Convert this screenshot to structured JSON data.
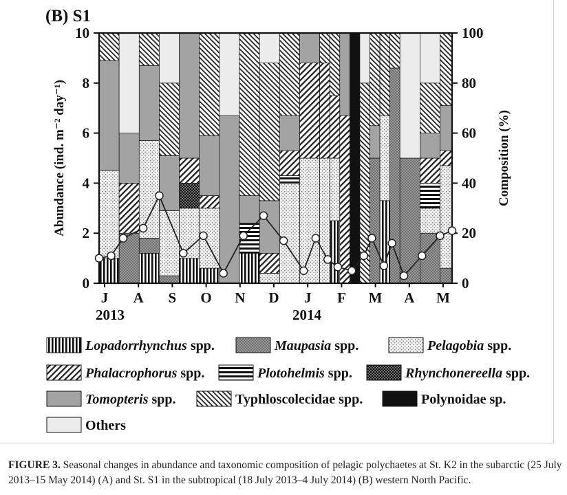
{
  "panel_label": "(B) S1",
  "caption": {
    "label": "FIGURE 3.",
    "text": "Seasonal changes in abundance and taxonomic composition of pelagic polychaetes at St. K2 in the subarctic (25 July 2013–15 May 2014) (A) and St. S1 in the subtropical (18 July 2013–4 July 2014) (B) western North Pacific."
  },
  "chart_data": {
    "type": "bar",
    "title": "(B) S1",
    "ylabel_left": "Abundance (ind. m⁻² day⁻¹)",
    "ylabel_right": "Composition (%)",
    "ylim_left": [
      0,
      10
    ],
    "ylim_right": [
      0,
      100
    ],
    "left_ticks": [
      "0",
      "2",
      "4",
      "6",
      "8",
      "10"
    ],
    "right_ticks": [
      "0",
      "20",
      "40",
      "60",
      "80",
      "100"
    ],
    "month_labels": [
      "J",
      "A",
      "S",
      "O",
      "N",
      "D",
      "J",
      "F",
      "M",
      "A",
      "M"
    ],
    "year_labels": [
      "2013",
      "2014"
    ],
    "grid": false,
    "legend_position": "bottom",
    "legend": [
      {
        "key": "lopa",
        "label": "Lopadorrhynchus",
        "suffix": " spp.",
        "italic": true
      },
      {
        "key": "maup",
        "label": "Maupasia",
        "suffix": " spp.",
        "italic": true
      },
      {
        "key": "pela",
        "label": "Pelagobia",
        "suffix": " spp.",
        "italic": true
      },
      {
        "key": "phal",
        "label": "Phalacrophorus",
        "suffix": " spp.",
        "italic": true
      },
      {
        "key": "plot",
        "label": "Plotohelmis",
        "suffix": " spp.",
        "italic": true
      },
      {
        "key": "rhyn",
        "label": "Rhynchonereella",
        "suffix": " spp.",
        "italic": true
      },
      {
        "key": "tomo",
        "label": "Tomopteris",
        "suffix": " spp.",
        "italic": true
      },
      {
        "key": "typh",
        "label": "Typhloscolecidae spp.",
        "suffix": "",
        "italic": false
      },
      {
        "key": "poly",
        "label": "Polynoidae sp.",
        "suffix": "",
        "italic": false
      },
      {
        "key": "oth",
        "label": "Others",
        "suffix": "",
        "italic": false
      }
    ],
    "stack_order": [
      "lopa",
      "maup",
      "pela",
      "plot",
      "rhyn",
      "phal",
      "tomo",
      "poly",
      "typh",
      "oth"
    ],
    "composition_bars": [
      {
        "t": 0.0,
        "t_end": 1.0,
        "comp": {
          "lopa": 10,
          "pela": 35,
          "tomo": 44,
          "typh": 11
        }
      },
      {
        "t": 1.0,
        "t_end": 2.0,
        "comp": {
          "maup": 20,
          "tomo": 20,
          "phal": 20,
          "oth": 40
        }
      },
      {
        "t": 2.0,
        "t_end": 3.0,
        "comp": {
          "lopa": 12,
          "maup": 6,
          "pela": 39,
          "tomo": 30,
          "typh": 13
        }
      },
      {
        "t": 3.0,
        "t_end": 4.0,
        "comp": {
          "maup": 3,
          "pela": 26,
          "tomo": 22,
          "typh": 29,
          "oth": 20
        }
      },
      {
        "t": 4.0,
        "t_end": 5.0,
        "comp": {
          "lopa": 10,
          "pela": 20,
          "phal": 10,
          "rhyn": 10,
          "tomo": 50
        }
      },
      {
        "t": 5.0,
        "t_end": 6.0,
        "comp": {
          "lopa": 6,
          "pela": 24,
          "phal": 5,
          "tomo": 24,
          "typh": 41
        }
      },
      {
        "t": 6.0,
        "t_end": 7.0,
        "comp": {
          "tomo": 67,
          "oth": 33
        }
      },
      {
        "t": 7.0,
        "t_end": 8.0,
        "comp": {
          "lopa": 12,
          "plot": 12,
          "tomo": 11,
          "typh": 65
        }
      },
      {
        "t": 8.0,
        "t_end": 9.0,
        "comp": {
          "pela": 4,
          "phal": 8,
          "tomo": 21,
          "typh": 55,
          "oth": 12
        }
      },
      {
        "t": 9.0,
        "t_end": 10.0,
        "comp": {
          "pela": 40,
          "phal": 10,
          "plot": 3,
          "tomo": 14,
          "typh": 33
        }
      },
      {
        "t": 10.0,
        "t_end": 11.0,
        "comp": {
          "pela": 50,
          "phal": 38,
          "tomo": 12
        }
      },
      {
        "t": 11.0,
        "t_end": 11.5,
        "comp": {
          "pela": 50,
          "phal": 38,
          "typh": 12
        }
      },
      {
        "t": 11.5,
        "t_end": 12.0,
        "comp": {
          "lopa": 25,
          "pela": 25,
          "phal": 25,
          "typh": 25
        }
      },
      {
        "t": 12.0,
        "t_end": 12.5,
        "comp": {
          "phal": 67,
          "tomo": 33
        }
      },
      {
        "t": 12.5,
        "t_end": 13.0,
        "comp": {
          "poly": 100
        }
      },
      {
        "t": 13.0,
        "t_end": 13.5,
        "comp": {
          "typh": 80,
          "oth": 20
        }
      },
      {
        "t": 13.5,
        "t_end": 14.0,
        "comp": {
          "maup": 50,
          "tomo": 13,
          "typh": 37
        }
      },
      {
        "t": 14.0,
        "t_end": 14.5,
        "comp": {
          "lopa": 33,
          "pela": 34,
          "typh": 33
        }
      },
      {
        "t": 14.5,
        "t_end": 15.0,
        "comp": {
          "maup": 86,
          "typh": 14
        }
      },
      {
        "t": 15.0,
        "t_end": 16.0,
        "comp": {
          "maup": 50,
          "oth": 50
        }
      },
      {
        "t": 16.0,
        "t_end": 17.0,
        "comp": {
          "maup": 20,
          "pela": 10,
          "phal": 10,
          "plot": 10,
          "tomo": 10,
          "typh": 20,
          "oth": 20
        }
      },
      {
        "t": 17.0,
        "t_end": 17.6,
        "comp": {
          "maup": 6,
          "pela": 41,
          "phal": 6,
          "tomo": 18,
          "typh": 29
        }
      }
    ],
    "abundance_line": {
      "t": [
        0.0,
        0.6,
        1.2,
        2.2,
        3.0,
        4.2,
        5.2,
        6.2,
        7.2,
        8.2,
        9.2,
        10.2,
        10.8,
        11.4,
        11.9,
        12.6,
        13.2,
        13.6,
        14.2,
        14.6,
        15.2,
        16.1,
        17.0,
        17.6
      ],
      "abundance": [
        1.0,
        1.1,
        1.8,
        2.2,
        3.5,
        1.2,
        1.9,
        0.4,
        1.9,
        2.7,
        1.7,
        0.5,
        1.8,
        0.95,
        0.65,
        0.5,
        1.1,
        1.8,
        0.7,
        1.6,
        0.3,
        1.1,
        1.9,
        2.1
      ]
    }
  }
}
